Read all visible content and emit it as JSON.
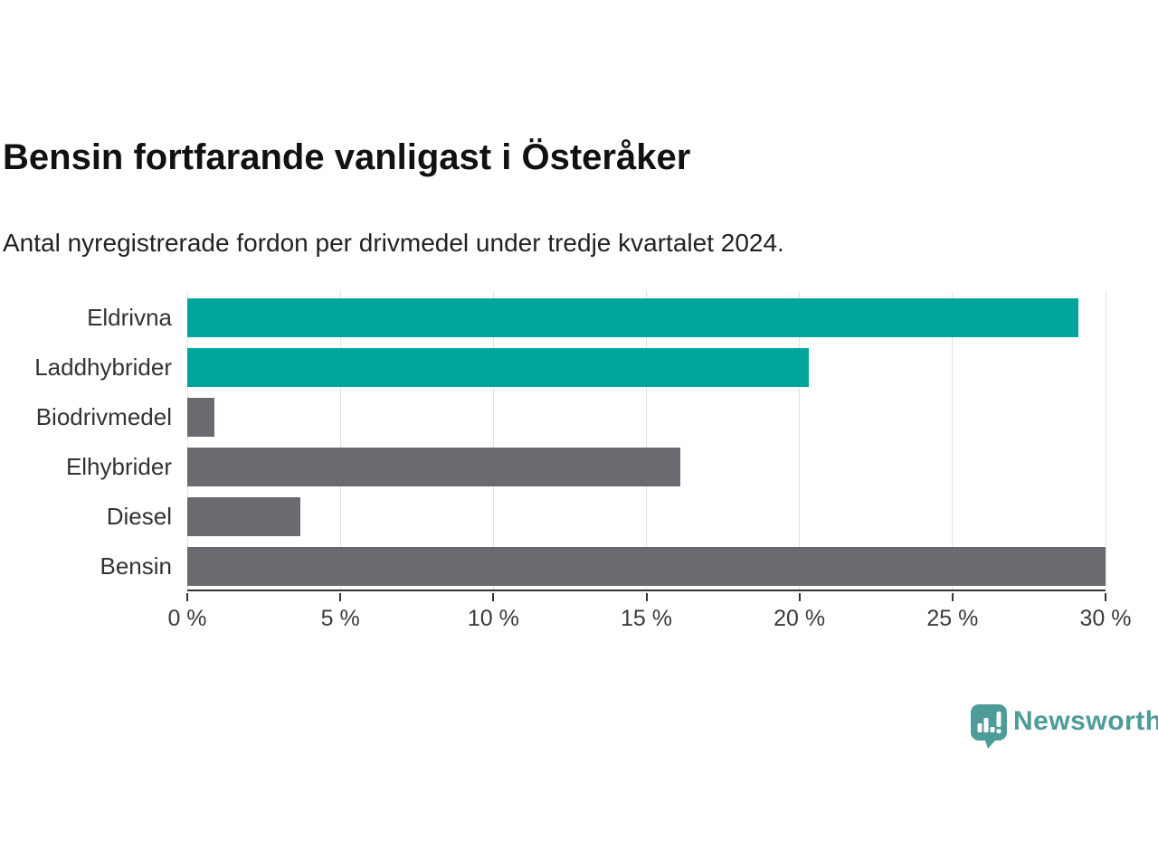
{
  "page": {
    "title": "Bensin fortfarande vanligast i Österåker",
    "subtitle": "Antal nyregistrerade fordon per drivmedel under tredje kvartalet 2024."
  },
  "chart_data": {
    "type": "bar",
    "orientation": "horizontal",
    "title": "Bensin fortfarande vanligast i Österåker",
    "subtitle": "Antal nyregistrerade fordon per drivmedel under tredje kvartalet 2024.",
    "categories": [
      "Eldrivna",
      "Laddhybrider",
      "Biodrivmedel",
      "Elhybrider",
      "Diesel",
      "Bensin"
    ],
    "values": [
      29.1,
      20.3,
      0.9,
      16.1,
      3.7,
      30.0
    ],
    "unit": "%",
    "bar_colors": [
      "#00A69C",
      "#00A69C",
      "#6B6A70",
      "#6B6A70",
      "#6B6A70",
      "#6B6A70"
    ],
    "xlim": [
      0,
      30
    ],
    "x_ticks": [
      0,
      5,
      10,
      15,
      20,
      25,
      30
    ],
    "x_tick_labels": [
      "0 %",
      "5 %",
      "10 %",
      "15 %",
      "20 %",
      "25 %",
      "30 %"
    ],
    "grid": true,
    "legend": "none"
  },
  "branding": {
    "logo_text": "Newsworthy",
    "logo_color": "#4E9C98",
    "logo_icon": "speech-bubble-bar-chart"
  },
  "colors": {
    "teal": "#00A69C",
    "gray": "#6B6A70",
    "axis": "#333333",
    "gridline": "#e3e3e3",
    "tick_text": "#3b3b3b",
    "title_text": "#111111"
  }
}
